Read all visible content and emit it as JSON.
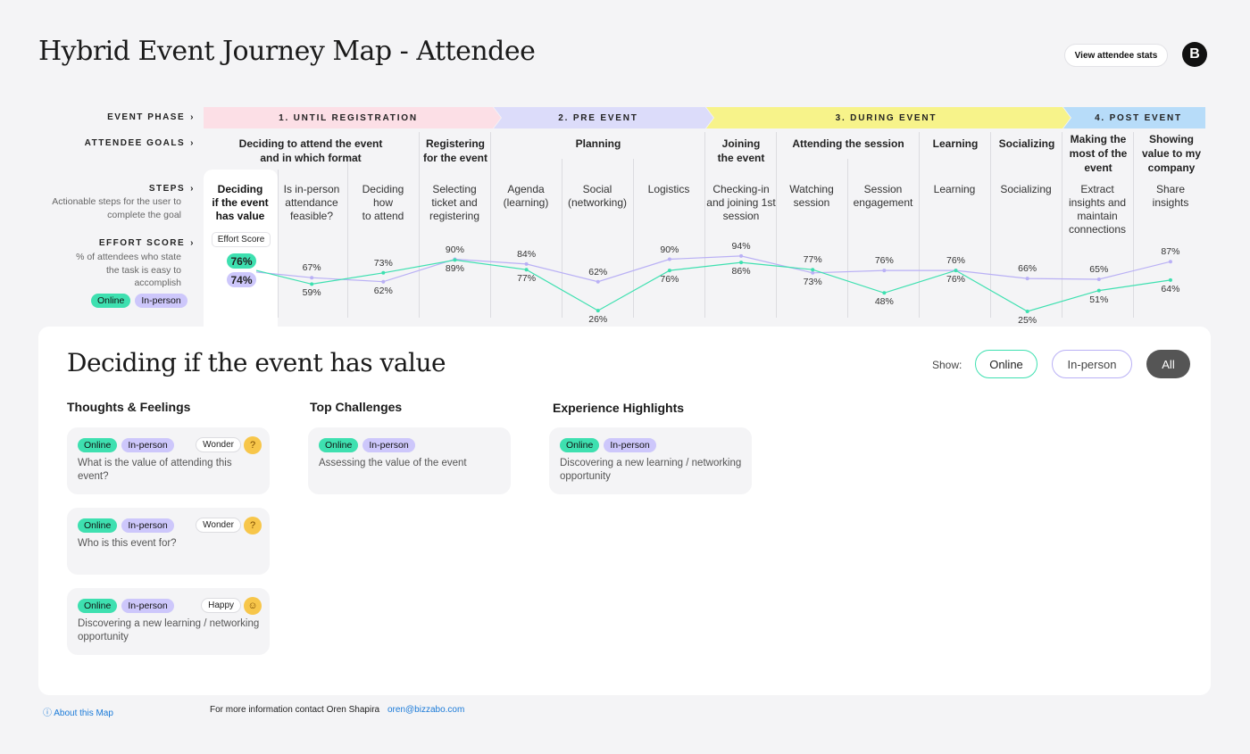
{
  "header": {
    "title": "Hybrid Event Journey Map - Attendee",
    "stats_button": "View attendee stats",
    "logo_letter": "B"
  },
  "row_labels": {
    "phase": "EVENT PHASE",
    "goals": "ATTENDEE GOALS",
    "steps": "STEPS",
    "steps_desc": "Actionable steps for the user to complete the goal",
    "effort": "EFFORT SCORE",
    "effort_desc": "% of attendees who state the task is easy to accomplish",
    "chevron": "›"
  },
  "legend": {
    "online": "Online",
    "inperson": "In-person"
  },
  "phases": [
    {
      "label": "1. UNTIL REGISTRATION",
      "color": "#fcdfe6"
    },
    {
      "label": "2. PRE EVENT",
      "color": "#dcdcfa"
    },
    {
      "label": "3. DURING EVENT",
      "color": "#f7f38a"
    },
    {
      "label": "4. POST EVENT",
      "color": "#b7dcf9"
    }
  ],
  "goals": [
    {
      "line1": "Deciding to attend the event",
      "line2": "and in which format"
    },
    {
      "line1": "Registering",
      "line2": "for the event"
    },
    {
      "line1": "Planning",
      "line2": ""
    },
    {
      "line1": "Joining",
      "line2": "the event"
    },
    {
      "line1": "Attending the session",
      "line2": ""
    },
    {
      "line1": "Learning",
      "line2": ""
    },
    {
      "line1": "Socializing",
      "line2": ""
    },
    {
      "line1": "Making the",
      "line2": "most of the",
      "line3": "event"
    },
    {
      "line1": "Showing",
      "line2": "value to my",
      "line3": "company"
    }
  ],
  "steps": [
    {
      "l1": "Deciding",
      "l2": "if the event",
      "l3": "has value"
    },
    {
      "l1": "Is in-person",
      "l2": "attendance",
      "l3": "feasible?"
    },
    {
      "l1": "Deciding",
      "l2": "how",
      "l3": "to attend"
    },
    {
      "l1": "Selecting",
      "l2": "ticket and",
      "l3": "registering"
    },
    {
      "l1": "Agenda",
      "l2": "(learning)",
      "l3": ""
    },
    {
      "l1": "Social",
      "l2": "(networking)",
      "l3": ""
    },
    {
      "l1": "Logistics",
      "l2": "",
      "l3": ""
    },
    {
      "l1": "Checking-in",
      "l2": "and joining 1st",
      "l3": "session"
    },
    {
      "l1": "Watching",
      "l2": "session",
      "l3": ""
    },
    {
      "l1": "Session",
      "l2": "engagement",
      "l3": ""
    },
    {
      "l1": "Learning",
      "l2": "",
      "l3": ""
    },
    {
      "l1": "Socializing",
      "l2": "",
      "l3": ""
    },
    {
      "l1": "Extract",
      "l2": "insights and",
      "l3": "maintain",
      "l4": "connections"
    },
    {
      "l1": "Share",
      "l2": "insights",
      "l3": ""
    }
  ],
  "effort": {
    "label": "Effort Score",
    "online_color": "#3ee0b0",
    "inperson_color": "#b9b0f5",
    "online": [
      "76%",
      "59%",
      "73%",
      "89%",
      "77%",
      "26%",
      "76%",
      "86%",
      "77%",
      "48%",
      "76%",
      "25%",
      "51%",
      "64%"
    ],
    "inperson": [
      "74%",
      "67%",
      "62%",
      "90%",
      "84%",
      "62%",
      "90%",
      "94%",
      "73%",
      "76%",
      "76%",
      "66%",
      "65%",
      "87%"
    ],
    "online_values": [
      76,
      59,
      73,
      89,
      77,
      26,
      76,
      86,
      77,
      48,
      76,
      25,
      51,
      64
    ],
    "inperson_values": [
      74,
      67,
      62,
      90,
      84,
      62,
      90,
      94,
      73,
      76,
      76,
      66,
      65,
      87
    ]
  },
  "detail": {
    "title": "Deciding if the event has value",
    "show_label": "Show:",
    "filters": [
      "Online",
      "In-person",
      "All"
    ],
    "sections": {
      "thoughts": "Thoughts & Feelings",
      "challenges": "Top Challenges",
      "highlights": "Experience Highlights"
    },
    "thoughts": [
      {
        "text": "What is the value of attending this event?",
        "mood": "Wonder",
        "emoji": "?"
      },
      {
        "text": "Who is this event for?",
        "mood": "Wonder",
        "emoji": "?"
      },
      {
        "text": "Discovering a new learning / networking opportunity",
        "mood": "Happy",
        "emoji": "☺"
      }
    ],
    "challenges": [
      {
        "text": "Assessing the value of the event"
      }
    ],
    "highlights": [
      {
        "text": "Discovering a new learning / networking opportunity"
      }
    ]
  },
  "footer": {
    "about": "ⓘ About this Map",
    "contact": "For more information contact Oren Shapira",
    "email": "oren@bizzabo.com"
  }
}
